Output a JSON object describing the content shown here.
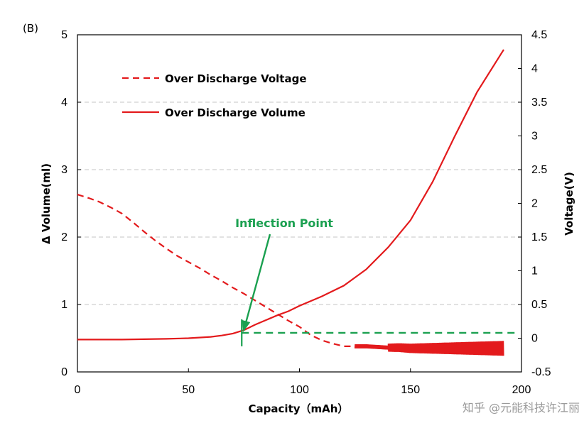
{
  "panel_label": "(B)",
  "watermark": "知乎 @元能科技许江丽",
  "colors": {
    "series": "#e31a1c",
    "annotation": "#1aa050",
    "grid": "#d0d0d0",
    "axis": "#000000"
  },
  "chart_data": {
    "type": "line",
    "xlabel": "Capacity（mAh）",
    "ylabel": "Δ Volume(ml)",
    "y2label": "Voltage(V)",
    "xlim": [
      0,
      200
    ],
    "ylim": [
      0,
      5
    ],
    "y2lim": [
      -0.5,
      4.5
    ],
    "x_ticks": [
      "0",
      "50",
      "100",
      "150",
      "200"
    ],
    "y_ticks": [
      "0",
      "1",
      "2",
      "3",
      "4",
      "5"
    ],
    "y2_ticks": [
      "-0.5",
      "0",
      "0.5",
      "1",
      "1.5",
      "2",
      "2.5",
      "3",
      "3.5",
      "4",
      "4.5"
    ],
    "grid": "horizontal dashed",
    "legend": [
      "Over Discharge Voltage",
      "Over Discharge Volume"
    ],
    "series": [
      {
        "name": "Over Discharge Voltage",
        "axis": "right",
        "style": "dashed",
        "x": [
          0,
          5,
          10,
          15,
          20,
          25,
          30,
          35,
          40,
          45,
          50,
          55,
          60,
          65,
          70,
          75,
          80,
          85,
          90,
          95,
          100,
          105,
          110,
          115,
          120,
          125,
          130,
          135,
          140,
          145,
          150,
          160,
          170,
          180,
          192
        ],
        "y": [
          2.13,
          2.08,
          2.02,
          1.94,
          1.85,
          1.72,
          1.58,
          1.45,
          1.33,
          1.22,
          1.13,
          1.04,
          0.94,
          0.85,
          0.75,
          0.66,
          0.56,
          0.46,
          0.36,
          0.26,
          0.17,
          0.05,
          -0.03,
          -0.08,
          -0.12,
          -0.12,
          -0.12,
          -0.13,
          -0.14,
          -0.14,
          -0.15,
          -0.15,
          -0.15,
          -0.15,
          -0.15
        ],
        "noisy_from_x": 125
      },
      {
        "name": "Over Discharge Volume",
        "axis": "left",
        "style": "solid",
        "x": [
          0,
          20,
          40,
          50,
          60,
          65,
          70,
          75,
          80,
          85,
          90,
          95,
          100,
          110,
          120,
          130,
          140,
          150,
          160,
          170,
          180,
          192
        ],
        "y": [
          0.48,
          0.48,
          0.49,
          0.5,
          0.52,
          0.54,
          0.57,
          0.62,
          0.7,
          0.77,
          0.84,
          0.9,
          0.98,
          1.12,
          1.28,
          1.52,
          1.85,
          2.25,
          2.82,
          3.5,
          4.15,
          4.78
        ]
      }
    ],
    "annotations": [
      {
        "text": "Inflection Point",
        "x": 74,
        "y": 0.57,
        "reference_line_y": 0.58
      }
    ]
  }
}
